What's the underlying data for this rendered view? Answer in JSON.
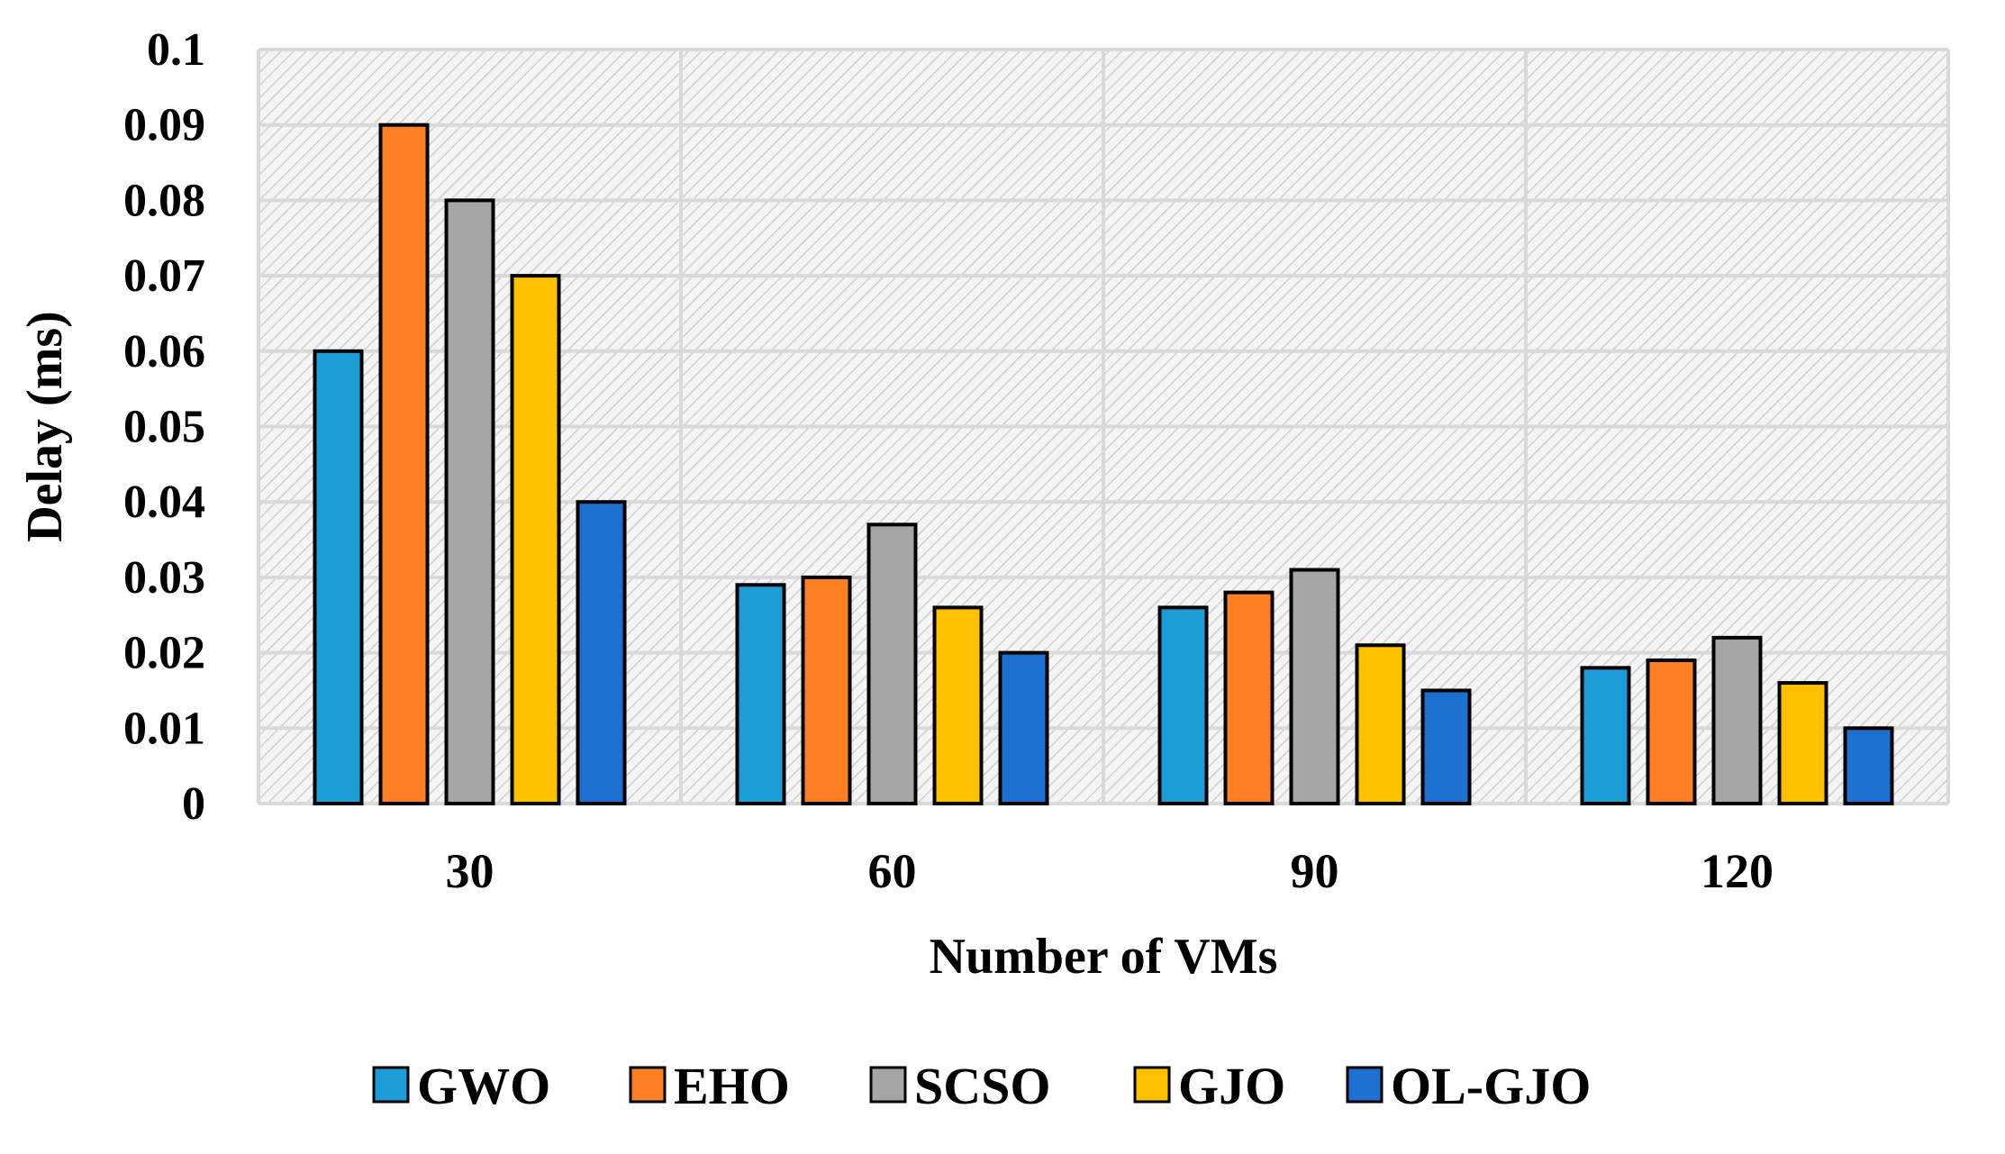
{
  "chart_data": {
    "type": "bar",
    "title": "",
    "xlabel": "Number of VMs",
    "ylabel": "Delay (ms)",
    "categories": [
      "30",
      "60",
      "90",
      "120"
    ],
    "ylim": [
      0,
      0.1
    ],
    "yticks": [
      "0",
      "0.01",
      "0.02",
      "0.03",
      "0.04",
      "0.05",
      "0.06",
      "0.07",
      "0.08",
      "0.09",
      "0.1"
    ],
    "grid": true,
    "legend_position": "bottom",
    "series": [
      {
        "name": "GWO",
        "color": "#1E9CD7",
        "values": [
          0.06,
          0.029,
          0.026,
          0.018
        ]
      },
      {
        "name": "EHO",
        "color": "#FF7F27",
        "values": [
          0.09,
          0.03,
          0.028,
          0.019
        ]
      },
      {
        "name": "SCSO",
        "color": "#A5A5A5",
        "values": [
          0.08,
          0.037,
          0.031,
          0.022
        ]
      },
      {
        "name": "GJO",
        "color": "#FFC000",
        "values": [
          0.07,
          0.026,
          0.021,
          0.016
        ]
      },
      {
        "name": "OL-GJO",
        "color": "#1F6FD1",
        "values": [
          0.04,
          0.02,
          0.015,
          0.01
        ]
      }
    ]
  }
}
